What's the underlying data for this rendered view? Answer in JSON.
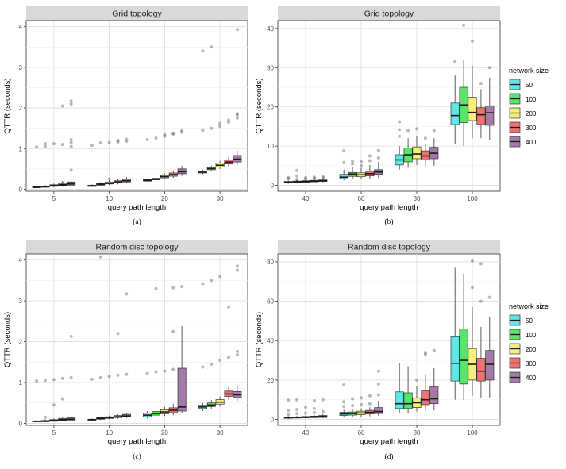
{
  "chart_data": [
    {
      "type": "boxplot",
      "title": "Grid topology",
      "caption": "(a)",
      "xlabel": "query path length",
      "ylabel": "QTTR (seconds)",
      "ylim": [
        -0.05,
        4.15
      ],
      "yticks": [
        0,
        1,
        2,
        3,
        4
      ],
      "categories": [
        "5",
        "10",
        "20",
        "30"
      ],
      "series_names": [
        "50",
        "100",
        "200",
        "300",
        "400"
      ],
      "boxes": [
        [
          [
            0.03,
            0.04,
            0.05,
            0.06,
            0.08,
            [
              1.04
            ]
          ],
          [
            0.04,
            0.05,
            0.06,
            0.08,
            0.1,
            [
              1.05,
              1.12
            ]
          ],
          [
            0.05,
            0.07,
            0.09,
            0.11,
            0.14,
            [
              1.12
            ]
          ],
          [
            0.06,
            0.09,
            0.11,
            0.15,
            0.2,
            [
              1.1,
              2.05,
              0.15
            ]
          ],
          [
            0.07,
            0.1,
            0.13,
            0.18,
            0.24,
            [
              1.05,
              1.15,
              1.22,
              2.1,
              2.17,
              0.47
            ]
          ]
        ],
        [
          [
            0.06,
            0.07,
            0.08,
            0.1,
            0.12,
            [
              1.08
            ]
          ],
          [
            0.08,
            0.1,
            0.12,
            0.14,
            0.17,
            [
              1.14
            ]
          ],
          [
            0.1,
            0.13,
            0.15,
            0.18,
            0.22,
            [
              1.15,
              0.25
            ]
          ],
          [
            0.12,
            0.16,
            0.18,
            0.21,
            0.26,
            [
              1.16,
              1.2
            ]
          ],
          [
            0.15,
            0.18,
            0.21,
            0.25,
            0.3,
            [
              1.18,
              1.23
            ]
          ]
        ],
        [
          [
            0.19,
            0.2,
            0.22,
            0.24,
            0.26,
            [
              1.22
            ]
          ],
          [
            0.21,
            0.23,
            0.25,
            0.27,
            0.3,
            [
              1.26
            ]
          ],
          [
            0.25,
            0.28,
            0.31,
            0.34,
            0.39,
            [
              1.3,
              1.34
            ]
          ],
          [
            0.28,
            0.32,
            0.36,
            0.4,
            0.46,
            [
              1.36,
              1.38
            ]
          ],
          [
            0.33,
            0.38,
            0.43,
            0.5,
            0.58,
            [
              1.4,
              1.45
            ]
          ]
        ],
        [
          [
            0.37,
            0.4,
            0.42,
            0.45,
            0.48,
            [
              1.45,
              3.4
            ]
          ],
          [
            0.44,
            0.48,
            0.51,
            0.54,
            0.58,
            [
              1.5,
              3.5
            ]
          ],
          [
            0.5,
            0.55,
            0.59,
            0.64,
            0.7,
            [
              1.55,
              1.62
            ]
          ],
          [
            0.56,
            0.62,
            0.67,
            0.72,
            0.79,
            [
              1.65,
              1.7
            ]
          ],
          [
            0.6,
            0.67,
            0.74,
            0.83,
            0.95,
            [
              1.75,
              1.82,
              1.86,
              3.93
            ]
          ]
        ]
      ]
    },
    {
      "type": "boxplot",
      "title": "Grid topology",
      "caption": "(b)",
      "xlabel": "query path length",
      "ylabel": "QTTR (seconds)",
      "ylim": [
        -1.5,
        42
      ],
      "yticks": [
        0,
        10,
        20,
        30,
        40
      ],
      "categories": [
        "40",
        "60",
        "80",
        "100"
      ],
      "series_names": [
        "50",
        "100",
        "200",
        "300",
        "400"
      ],
      "boxes": [
        [
          [
            0.4,
            0.6,
            0.8,
            1.0,
            1.3,
            [
              1.7,
              2.0
            ]
          ],
          [
            0.5,
            0.7,
            0.9,
            1.1,
            1.4,
            [
              1.5,
              2.4,
              3.8
            ]
          ],
          [
            0.6,
            0.8,
            1.0,
            1.2,
            1.5,
            [
              1.6,
              2.0
            ]
          ],
          [
            0.7,
            0.9,
            1.1,
            1.3,
            1.6,
            [
              1.8,
              2.1
            ]
          ],
          [
            0.8,
            1.0,
            1.2,
            1.4,
            1.7,
            [
              1.9,
              2.2
            ]
          ]
        ],
        [
          [
            1.3,
            1.7,
            2.1,
            2.8,
            4.0,
            [
              5.8,
              8.8
            ]
          ],
          [
            1.6,
            2.3,
            2.9,
            3.3,
            4.7,
            [
              5.5,
              6.2
            ]
          ],
          [
            1.5,
            2.2,
            2.7,
            3.2,
            4.5,
            [
              5.0,
              6.0
            ]
          ],
          [
            1.7,
            2.4,
            3.0,
            3.6,
            5.2,
            [
              6.3,
              7.5
            ]
          ],
          [
            1.9,
            2.8,
            3.4,
            4.0,
            6.0,
            [
              7.0,
              8.9
            ]
          ]
        ],
        [
          [
            4.0,
            5.2,
            6.5,
            7.8,
            10.0,
            [
              12.5,
              14.2,
              16.2
            ]
          ],
          [
            4.5,
            6.0,
            7.8,
            9.5,
            12.0,
            [
              14.0
            ]
          ],
          [
            5.2,
            6.8,
            8.0,
            9.8,
            12.5,
            [
              14.4
            ]
          ],
          [
            5.0,
            6.5,
            7.5,
            8.8,
            10.5,
            [
              12.0
            ]
          ],
          [
            5.0,
            6.8,
            8.2,
            9.7,
            12.0,
            [
              14.0
            ]
          ]
        ],
        [
          [
            10.5,
            15.5,
            17.8,
            21.0,
            28.0,
            [
              31.5
            ]
          ],
          [
            10.0,
            16.0,
            20.5,
            25.0,
            32.0,
            [
              40.8
            ]
          ],
          [
            12.0,
            16.5,
            18.6,
            22.5,
            30.5,
            [
              36.8
            ]
          ],
          [
            12.0,
            15.5,
            18.0,
            19.8,
            24.5,
            [
              26.0
            ]
          ],
          [
            11.5,
            15.3,
            18.5,
            20.3,
            27.5,
            [
              30.0
            ]
          ]
        ]
      ]
    },
    {
      "type": "boxplot",
      "title": "Random disc topology",
      "caption": "(c)",
      "xlabel": "query path length",
      "ylabel": "QTTR (seconds)",
      "ylim": [
        -0.05,
        4.15
      ],
      "yticks": [
        0,
        1,
        2,
        3,
        4
      ],
      "categories": [
        "5",
        "10",
        "20",
        "30"
      ],
      "series_names": [
        "50",
        "100",
        "200",
        "300",
        "400"
      ],
      "boxes": [
        [
          [
            0.03,
            0.04,
            0.05,
            0.06,
            0.08,
            [
              1.04
            ]
          ],
          [
            0.03,
            0.04,
            0.05,
            0.07,
            0.1,
            [
              1.05,
              0.15
            ]
          ],
          [
            0.04,
            0.05,
            0.07,
            0.09,
            0.12,
            [
              1.07,
              0.45
            ]
          ],
          [
            0.05,
            0.07,
            0.09,
            0.12,
            0.15,
            [
              1.1,
              0.6
            ]
          ],
          [
            0.05,
            0.08,
            0.1,
            0.14,
            0.18,
            [
              1.12,
              2.13
            ]
          ]
        ],
        [
          [
            0.06,
            0.08,
            0.09,
            0.1,
            0.12,
            [
              1.08
            ]
          ],
          [
            0.08,
            0.1,
            0.12,
            0.14,
            0.16,
            [
              1.12,
              4.08
            ]
          ],
          [
            0.1,
            0.12,
            0.14,
            0.16,
            0.19,
            [
              1.15
            ]
          ],
          [
            0.11,
            0.14,
            0.16,
            0.19,
            0.22,
            [
              1.18,
              2.2
            ]
          ],
          [
            0.13,
            0.16,
            0.18,
            0.22,
            0.26,
            [
              1.2,
              3.17
            ]
          ]
        ],
        [
          [
            0.12,
            0.16,
            0.2,
            0.25,
            0.3,
            [
              1.22
            ]
          ],
          [
            0.15,
            0.2,
            0.24,
            0.29,
            0.34,
            [
              1.26,
              3.3
            ]
          ],
          [
            0.18,
            0.23,
            0.28,
            0.33,
            0.4,
            [
              1.28
            ]
          ],
          [
            0.2,
            0.26,
            0.32,
            0.38,
            0.48,
            [
              1.32,
              2.25,
              3.32
            ]
          ],
          [
            0.25,
            0.3,
            0.4,
            1.35,
            2.38,
            [
              3.35
            ]
          ]
        ],
        [
          [
            0.3,
            0.36,
            0.4,
            0.44,
            0.5,
            [
              1.38,
              3.42
            ]
          ],
          [
            0.35,
            0.41,
            0.45,
            0.5,
            0.57,
            [
              1.45,
              3.5
            ]
          ],
          [
            0.41,
            0.47,
            0.52,
            0.58,
            0.66,
            [
              1.55,
              3.6
            ]
          ],
          [
            0.58,
            0.66,
            0.72,
            0.79,
            0.88,
            [
              1.62,
              2.85
            ]
          ],
          [
            0.55,
            0.63,
            0.7,
            0.78,
            0.92,
            [
              1.68,
              1.76,
              3.75,
              3.85
            ]
          ]
        ]
      ]
    },
    {
      "type": "boxplot",
      "title": "Random disc topology",
      "caption": "(d)",
      "xlabel": "query path length",
      "ylabel": "QTTR (seconds)",
      "ylim": [
        -3,
        84
      ],
      "yticks": [
        0,
        20,
        40,
        60,
        80
      ],
      "categories": [
        "40",
        "60",
        "80",
        "100"
      ],
      "series_names": [
        "50",
        "100",
        "200",
        "300",
        "400"
      ],
      "boxes": [
        [
          [
            0.3,
            0.6,
            0.9,
            1.2,
            1.6,
            [
              2.5,
              4.5,
              9.8
            ]
          ],
          [
            0.4,
            0.7,
            1.0,
            1.3,
            1.8,
            [
              3.0,
              5.0,
              10.0
            ]
          ],
          [
            0.5,
            0.8,
            1.1,
            1.5,
            2.0,
            [
              3.2,
              6.2
            ]
          ],
          [
            0.6,
            0.9,
            1.3,
            1.7,
            2.3,
            [
              3.5,
              5.5,
              9.5
            ]
          ],
          [
            0.7,
            1.0,
            1.5,
            2.0,
            2.8,
            [
              4.0,
              10.0
            ]
          ]
        ],
        [
          [
            1.0,
            2.0,
            2.8,
            3.6,
            4.8,
            [
              6.5,
              9.0,
              17.5
            ]
          ],
          [
            1.2,
            2.2,
            3.0,
            3.8,
            5.0,
            [
              7.0,
              10.5
            ]
          ],
          [
            1.4,
            2.5,
            3.3,
            4.2,
            5.6,
            [
              7.5,
              11.0
            ]
          ],
          [
            1.6,
            2.8,
            3.6,
            4.6,
            6.2,
            [
              8.0,
              12.0
            ]
          ],
          [
            1.8,
            3.0,
            4.0,
            6.0,
            9.5,
            [
              12.5,
              18.0,
              24.5
            ]
          ]
        ],
        [
          [
            3.0,
            5.5,
            8.0,
            14.0,
            28.5,
            []
          ],
          [
            3.0,
            5.5,
            8.0,
            13.5,
            27.0,
            []
          ],
          [
            4.0,
            6.0,
            8.5,
            11.0,
            17.0,
            [
              20.0
            ]
          ],
          [
            4.5,
            7.5,
            10.0,
            14.5,
            23.0,
            [
              33.0,
              34.0
            ]
          ],
          [
            4.5,
            8.0,
            10.5,
            16.5,
            26.0,
            [
              35.0
            ]
          ]
        ],
        [
          [
            10.0,
            19.5,
            28.5,
            42.0,
            77.0,
            []
          ],
          [
            10.0,
            18.0,
            30.0,
            46.0,
            74.0,
            []
          ],
          [
            12.0,
            20.0,
            28.0,
            36.0,
            57.0,
            [
              67.0,
              80.5
            ]
          ],
          [
            11.0,
            19.5,
            24.5,
            31.0,
            47.0,
            [
              60.0,
              79.0
            ]
          ],
          [
            11.0,
            20.0,
            28.0,
            35.0,
            52.0,
            [
              62.0
            ]
          ]
        ]
      ]
    }
  ],
  "legend": {
    "title": "network size",
    "labels": [
      "50",
      "100",
      "200",
      "300",
      "400"
    ],
    "colors": [
      "#5fe8e8",
      "#5ce36a",
      "#f2f07a",
      "#f07270",
      "#a57aa8"
    ]
  }
}
